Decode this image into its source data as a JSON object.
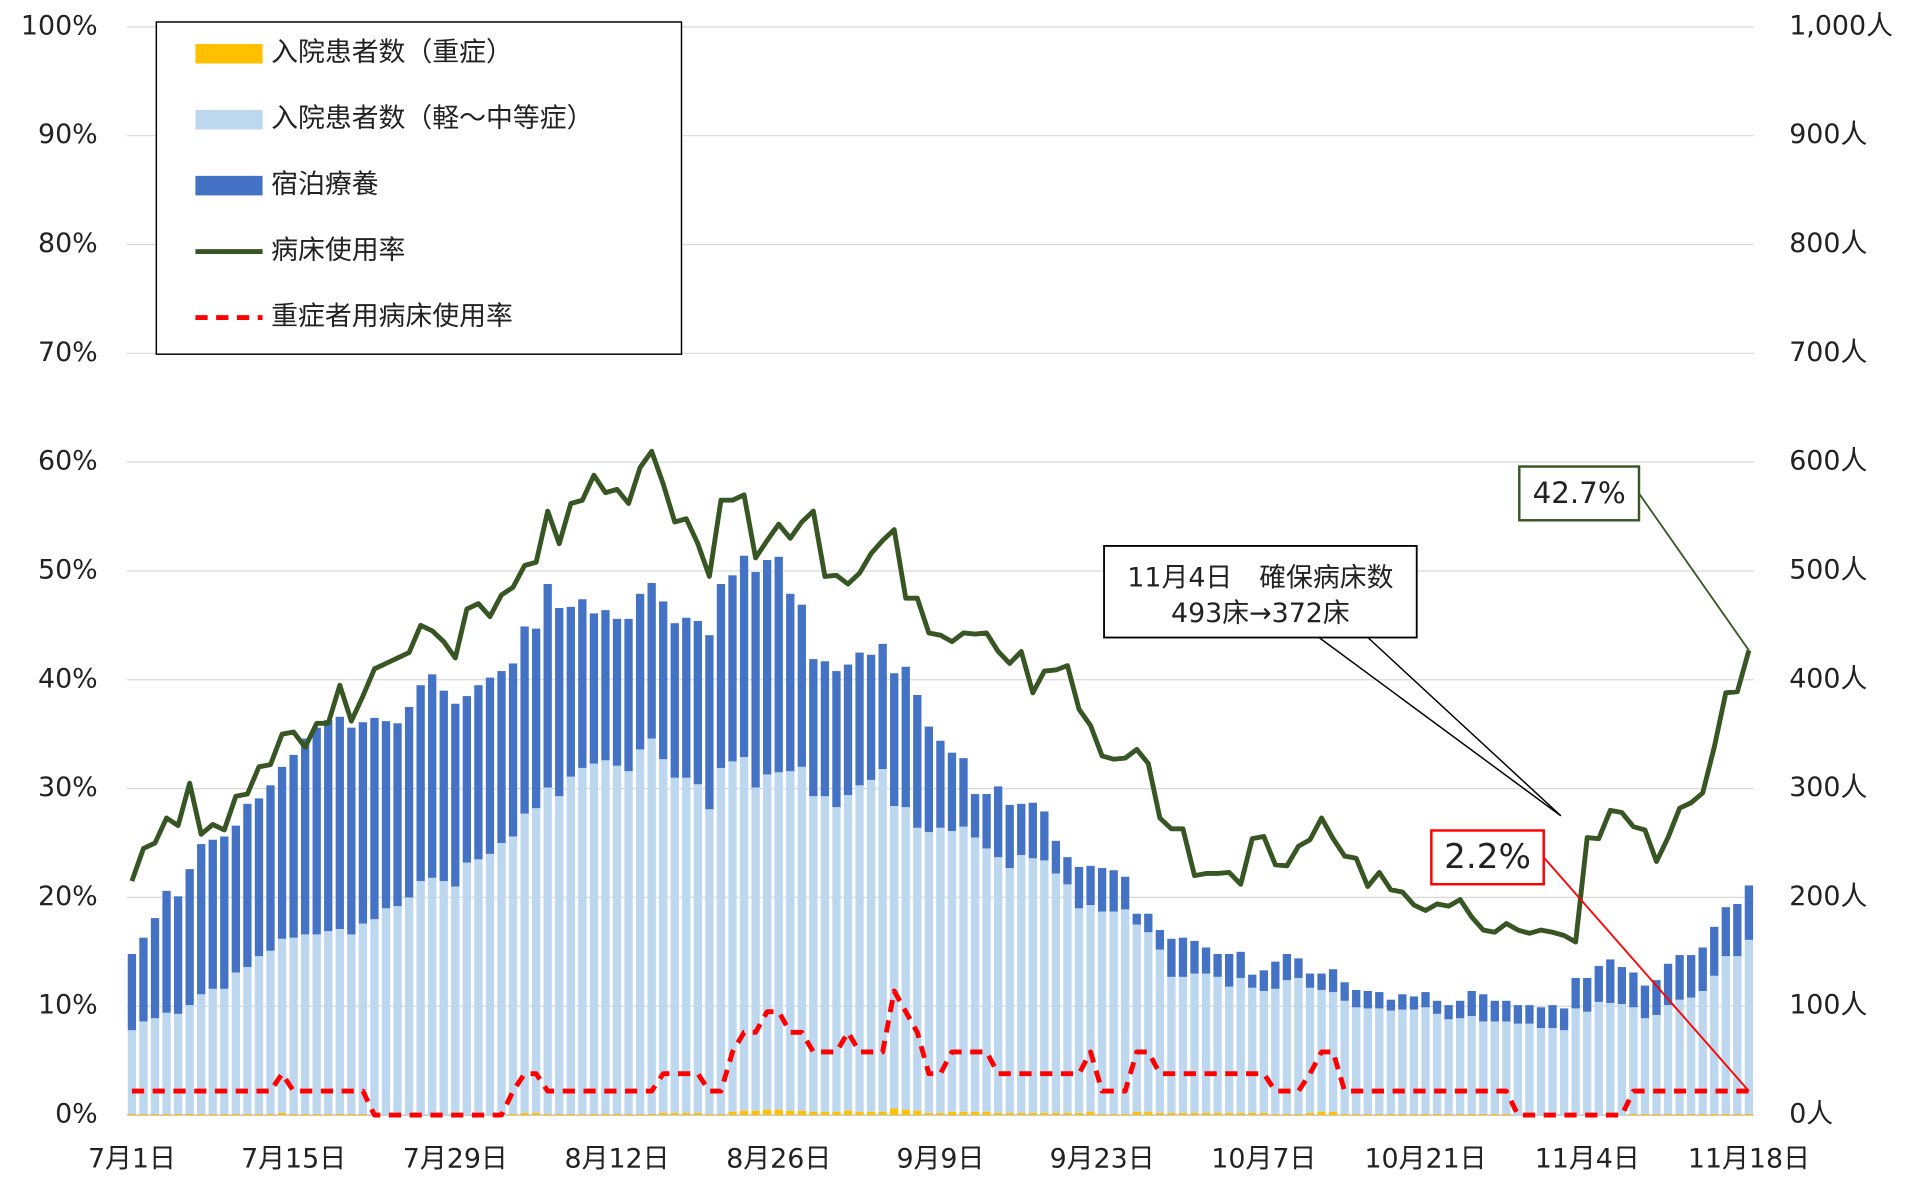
{
  "chart_data": {
    "type": "bar",
    "categories": [
      "7月1日",
      null,
      null,
      null,
      null,
      null,
      null,
      null,
      null,
      null,
      null,
      null,
      null,
      null,
      "7月15日",
      null,
      null,
      null,
      null,
      null,
      null,
      null,
      null,
      null,
      null,
      null,
      null,
      null,
      "7月29日",
      null,
      null,
      null,
      null,
      null,
      null,
      null,
      null,
      null,
      null,
      null,
      null,
      null,
      "8月12日",
      null,
      null,
      null,
      null,
      null,
      null,
      null,
      null,
      null,
      null,
      null,
      null,
      null,
      "8月26日",
      null,
      null,
      null,
      null,
      null,
      null,
      null,
      null,
      null,
      null,
      null,
      null,
      null,
      "9月9日",
      null,
      null,
      null,
      null,
      null,
      null,
      null,
      null,
      null,
      null,
      null,
      null,
      null,
      "9月23日",
      null,
      null,
      null,
      null,
      null,
      null,
      null,
      null,
      null,
      null,
      null,
      null,
      null,
      "10月7日",
      null,
      null,
      null,
      null,
      null,
      null,
      null,
      null,
      null,
      null,
      null,
      null,
      null,
      "10月21日",
      null,
      null,
      null,
      null,
      null,
      null,
      null,
      null,
      null,
      null,
      null,
      null,
      null,
      "11月4日",
      null,
      null,
      null,
      null,
      null,
      null,
      null,
      null,
      null,
      null,
      null,
      null,
      null,
      "11月18日"
    ],
    "series": [
      {
        "name": "入院患者数（重症）",
        "type": "bar",
        "axis": "y2",
        "color": "#ffc000",
        "values": [
          1,
          1,
          1,
          1,
          1,
          1,
          1,
          1,
          1,
          1,
          1,
          1,
          1,
          2,
          1,
          1,
          1,
          1,
          1,
          1,
          1,
          0,
          0,
          0,
          0,
          0,
          0,
          0,
          0,
          0,
          0,
          0,
          0,
          1,
          2,
          2,
          1,
          1,
          1,
          1,
          1,
          1,
          1,
          1,
          1,
          1,
          2,
          2,
          2,
          2,
          1,
          1,
          3,
          4,
          4,
          5,
          5,
          4,
          4,
          3,
          3,
          3,
          4,
          3,
          3,
          3,
          6,
          5,
          4,
          2,
          2,
          3,
          3,
          3,
          3,
          2,
          2,
          2,
          2,
          2,
          2,
          2,
          2,
          3,
          1,
          1,
          1,
          3,
          3,
          2,
          2,
          2,
          2,
          2,
          2,
          2,
          2,
          2,
          2,
          1,
          1,
          1,
          2,
          3,
          3,
          1,
          1,
          1,
          1,
          1,
          1,
          1,
          1,
          1,
          1,
          1,
          1,
          1,
          1,
          1,
          0,
          0,
          0,
          0,
          0,
          0,
          0,
          0,
          0,
          0,
          1,
          1,
          1,
          1,
          1,
          1,
          1,
          1,
          1,
          1,
          1
        ]
      },
      {
        "name": "入院患者数（軽～中等症）",
        "type": "bar",
        "axis": "y2",
        "color": "#bdd7ee",
        "values": [
          77,
          85,
          88,
          93,
          92,
          100,
          110,
          115,
          115,
          130,
          135,
          145,
          150,
          160,
          162,
          165,
          165,
          168,
          170,
          165,
          175,
          180,
          190,
          192,
          200,
          215,
          218,
          215,
          210,
          232,
          235,
          240,
          250,
          255,
          275,
          280,
          300,
          292,
          310,
          318,
          322,
          325,
          320,
          315,
          335,
          345,
          325,
          308,
          308,
          302,
          280,
          318,
          322,
          325,
          297,
          308,
          310,
          312,
          316,
          290,
          290,
          280,
          290,
          300,
          305,
          315,
          278,
          278,
          260,
          258,
          262,
          258,
          262,
          252,
          242,
          235,
          225,
          237,
          234,
          232,
          220,
          210,
          188,
          190,
          186,
          186,
          188,
          172,
          165,
          150,
          125,
          125,
          128,
          128,
          125,
          116,
          124,
          115,
          112,
          115,
          123,
          125,
          115,
          112,
          110,
          104,
          98,
          97,
          97,
          95,
          96,
          96,
          98,
          92,
          87,
          88,
          90,
          85,
          85,
          85,
          84,
          84,
          80,
          80,
          78,
          98,
          95,
          104,
          103,
          102,
          98,
          88,
          91,
          100,
          105,
          107,
          113,
          127,
          145,
          145,
          160
        ]
      },
      {
        "name": "宿泊療養",
        "type": "bar",
        "axis": "y2",
        "color": "#4472c4",
        "values": [
          70,
          77,
          92,
          112,
          108,
          125,
          138,
          137,
          140,
          135,
          150,
          145,
          152,
          158,
          168,
          180,
          190,
          194,
          195,
          190,
          185,
          185,
          172,
          168,
          175,
          180,
          187,
          175,
          168,
          153,
          160,
          162,
          158,
          159,
          172,
          165,
          187,
          173,
          156,
          155,
          138,
          138,
          135,
          140,
          143,
          143,
          145,
          142,
          147,
          150,
          160,
          169,
          171,
          185,
          198,
          197,
          198,
          163,
          149,
          126,
          124,
          125,
          120,
          122,
          115,
          115,
          122,
          129,
          122,
          97,
          80,
          72,
          63,
          40,
          50,
          65,
          58,
          47,
          51,
          45,
          30,
          25,
          38,
          36,
          40,
          38,
          30,
          10,
          17,
          18,
          35,
          36,
          30,
          24,
          21,
          30,
          24,
          12,
          19,
          25,
          24,
          18,
          13,
          15,
          21,
          17,
          16,
          16,
          15,
          10,
          14,
          12,
          14,
          12,
          13,
          16,
          23,
          25,
          19,
          19,
          17,
          17,
          19,
          21,
          20,
          28,
          31,
          33,
          40,
          34,
          32,
          30,
          32,
          38,
          41,
          39,
          40,
          45,
          45,
          48,
          50
        ]
      },
      {
        "name": "病床使用率",
        "type": "line",
        "axis": "y",
        "color": "#375623",
        "values": [
          21.5,
          24.5,
          25,
          27.3,
          26.6,
          30.5,
          25.8,
          26.7,
          26.2,
          29.3,
          29.5,
          32,
          32.2,
          35,
          35.2,
          33.8,
          36,
          36,
          39.5,
          36.2,
          38.5,
          41,
          41.5,
          42,
          42.5,
          45,
          44.5,
          43.5,
          42,
          46.5,
          47,
          45.8,
          47.8,
          48.5,
          50.5,
          50.8,
          55.5,
          52.5,
          56.2,
          56.5,
          58.8,
          57.2,
          57.5,
          56.2,
          59.5,
          61,
          58,
          54.5,
          54.8,
          52.5,
          49.5,
          56.5,
          56.5,
          57,
          51.2,
          52.8,
          54.3,
          53,
          54.5,
          55.5,
          49.5,
          49.6,
          48.8,
          49.8,
          51.6,
          52.8,
          53.8,
          47.5,
          47.5,
          44.3,
          44.1,
          43.5,
          44.3,
          44.2,
          44.3,
          42.6,
          41.5,
          42.6,
          38.8,
          40.8,
          40.9,
          41.3,
          37.3,
          35.8,
          33,
          32.7,
          32.8,
          33.6,
          32.3,
          27.3,
          26.3,
          26.3,
          22,
          22.2,
          22.2,
          22.3,
          21.2,
          25.4,
          25.6,
          23,
          22.9,
          24.7,
          25.3,
          27.3,
          25.4,
          23.8,
          23.6,
          21,
          22.3,
          20.7,
          20.5,
          19.3,
          18.8,
          19.4,
          19.2,
          19.8,
          18.2,
          17,
          16.8,
          17.6,
          17,
          16.7,
          17,
          16.8,
          16.5,
          15.9,
          25.5,
          25.4,
          28,
          27.8,
          26.5,
          26.2,
          23.3,
          25.5,
          28.2,
          28.7,
          29.6,
          33.8,
          38.8,
          38.9,
          42.7
        ],
        "value_labels": [
          null,
          null,
          null,
          null,
          null,
          null,
          null,
          null,
          null,
          null,
          null,
          null,
          null,
          null,
          null,
          null,
          null,
          null,
          null,
          null,
          null,
          null,
          null,
          null,
          null,
          null,
          null,
          null,
          null,
          null,
          null,
          null,
          null,
          null,
          null,
          null,
          null,
          null,
          null,
          null,
          null,
          null,
          null,
          null,
          null,
          null,
          null,
          null,
          null,
          null,
          null,
          null,
          null,
          null,
          null,
          null,
          null,
          null,
          null,
          null,
          null,
          null,
          null,
          null,
          null,
          null,
          null,
          null,
          null,
          null,
          null,
          null,
          null,
          null,
          null,
          null,
          null,
          null,
          null,
          null,
          null,
          null,
          null,
          null,
          null,
          null,
          null,
          null,
          null,
          null,
          null,
          null,
          null,
          null,
          null,
          null,
          null,
          null,
          null,
          null,
          null,
          null,
          null,
          null,
          null,
          null,
          null,
          null,
          null,
          null,
          null,
          null,
          null,
          null,
          null,
          null,
          null,
          null,
          null,
          null,
          null,
          null,
          null,
          null,
          null,
          null,
          null,
          null,
          null,
          null,
          null,
          null,
          null,
          null,
          null,
          null,
          null,
          null,
          null,
          null,
          "42.7%"
        ]
      },
      {
        "name": "重症者用病床使用率",
        "type": "line",
        "axis": "y",
        "color": "#ff0000",
        "line_style": "dashed",
        "values": [
          2.2,
          2.2,
          2.2,
          2.2,
          2.2,
          2.2,
          2.2,
          2.2,
          2.2,
          2.2,
          2.2,
          2.2,
          2.2,
          3.8,
          2.2,
          2.2,
          2.2,
          2.2,
          2.2,
          2.2,
          2.2,
          0,
          0,
          0,
          0,
          0,
          0,
          0,
          0,
          0,
          0,
          0,
          0,
          2.2,
          3.8,
          3.8,
          2.2,
          2.2,
          2.2,
          2.2,
          2.2,
          2.2,
          2.2,
          2.2,
          2.2,
          2.2,
          3.8,
          3.8,
          3.8,
          3.8,
          2.2,
          2.2,
          5.8,
          7.6,
          7.6,
          9.5,
          9.5,
          7.6,
          7.6,
          5.8,
          5.8,
          5.8,
          7.6,
          5.8,
          5.8,
          5.8,
          11.4,
          9.5,
          7.6,
          3.8,
          3.8,
          5.8,
          5.8,
          5.8,
          5.8,
          3.8,
          3.8,
          3.8,
          3.8,
          3.8,
          3.8,
          3.8,
          3.8,
          5.8,
          2.2,
          2.2,
          2.2,
          5.8,
          5.8,
          3.8,
          3.8,
          3.8,
          3.8,
          3.8,
          3.8,
          3.8,
          3.8,
          3.8,
          3.8,
          2.2,
          2.2,
          2.2,
          3.8,
          5.8,
          5.8,
          2.2,
          2.2,
          2.2,
          2.2,
          2.2,
          2.2,
          2.2,
          2.2,
          2.2,
          2.2,
          2.2,
          2.2,
          2.2,
          2.2,
          2.2,
          0,
          0,
          0,
          0,
          0,
          0,
          0,
          0,
          0,
          0,
          2.2,
          2.2,
          2.2,
          2.2,
          2.2,
          2.2,
          2.2,
          2.2,
          2.2,
          2.2,
          2.2
        ],
        "value_labels": [
          null,
          null,
          null,
          null,
          null,
          null,
          null,
          null,
          null,
          null,
          null,
          null,
          null,
          null,
          null,
          null,
          null,
          null,
          null,
          null,
          null,
          null,
          null,
          null,
          null,
          null,
          null,
          null,
          null,
          null,
          null,
          null,
          null,
          null,
          null,
          null,
          null,
          null,
          null,
          null,
          null,
          null,
          null,
          null,
          null,
          null,
          null,
          null,
          null,
          null,
          null,
          null,
          null,
          null,
          null,
          null,
          null,
          null,
          null,
          null,
          null,
          null,
          null,
          null,
          null,
          null,
          null,
          null,
          null,
          null,
          null,
          null,
          null,
          null,
          null,
          null,
          null,
          null,
          null,
          null,
          null,
          null,
          null,
          null,
          null,
          null,
          null,
          null,
          null,
          null,
          null,
          null,
          null,
          null,
          null,
          null,
          null,
          null,
          null,
          null,
          null,
          null,
          null,
          null,
          null,
          null,
          null,
          null,
          null,
          null,
          null,
          null,
          null,
          null,
          null,
          null,
          null,
          null,
          null,
          null,
          null,
          null,
          null,
          null,
          null,
          null,
          null,
          null,
          null,
          null,
          null,
          null,
          null,
          null,
          null,
          null,
          null,
          null,
          null,
          null,
          "2.2%"
        ]
      }
    ],
    "ylim": [
      0,
      100
    ],
    "yticks": [
      {
        "value": 0,
        "label": "0%"
      },
      {
        "value": 10,
        "label": "10%"
      },
      {
        "value": 20,
        "label": "20%"
      },
      {
        "value": 30,
        "label": "30%"
      },
      {
        "value": 40,
        "label": "40%"
      },
      {
        "value": 50,
        "label": "50%"
      },
      {
        "value": 60,
        "label": "60%"
      },
      {
        "value": 70,
        "label": "70%"
      },
      {
        "value": 80,
        "label": "80%"
      },
      {
        "value": 90,
        "label": "90%"
      },
      {
        "value": 100,
        "label": "100%"
      }
    ],
    "y2lim": [
      0,
      1000
    ],
    "y2ticks": [
      {
        "value": 0,
        "label": "0人"
      },
      {
        "value": 100,
        "label": "100人"
      },
      {
        "value": 200,
        "label": "200人"
      },
      {
        "value": 300,
        "label": "300人"
      },
      {
        "value": 400,
        "label": "400人"
      },
      {
        "value": 500,
        "label": "500人"
      },
      {
        "value": 600,
        "label": "600人"
      },
      {
        "value": 700,
        "label": "700人"
      },
      {
        "value": 800,
        "label": "800人"
      },
      {
        "value": 900,
        "label": "900人"
      },
      {
        "value": 1000,
        "label": "1,000人"
      }
    ],
    "grid": true,
    "legend": "upper left",
    "annotation": [
      "11月4日　確保病床数",
      "493床→372床"
    ]
  }
}
